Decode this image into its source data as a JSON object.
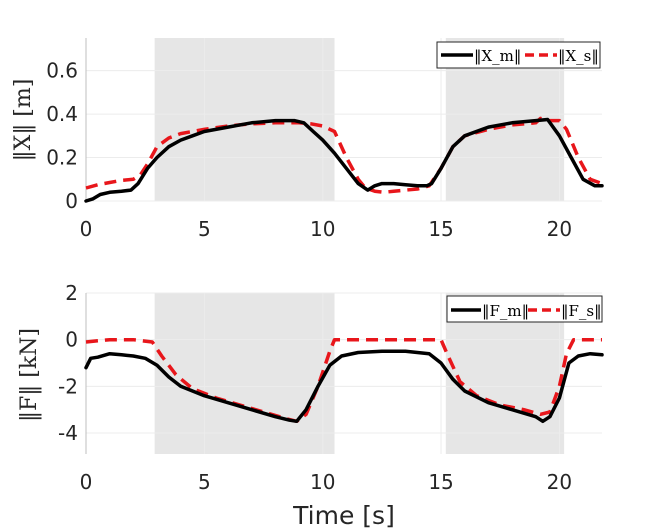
{
  "chart_data": [
    {
      "type": "line",
      "ylabel": "‖X‖ [m]",
      "xlabel": "",
      "xlim": [
        0,
        21.8
      ],
      "ylim": [
        0,
        0.75
      ],
      "xticks": [
        "0",
        "5",
        "10",
        "15",
        "20"
      ],
      "yticks": [
        "0",
        "0.2",
        "0.4",
        "0.6"
      ],
      "grid": true,
      "legend_position": "top-right",
      "shaded_intervals": [
        [
          2.9,
          10.5
        ],
        [
          15.2,
          20.2
        ]
      ],
      "series": [
        {
          "name": "‖X_m‖",
          "color": "#000000",
          "style": "solid",
          "x": [
            0,
            0.3,
            0.6,
            1.0,
            1.5,
            1.9,
            2.2,
            2.6,
            3.0,
            3.5,
            4.0,
            4.5,
            5.0,
            6.0,
            7.0,
            8.0,
            8.8,
            9.2,
            9.6,
            10.0,
            10.5,
            11.0,
            11.5,
            11.9,
            12.2,
            12.5,
            13.0,
            13.5,
            14.0,
            14.4,
            14.6,
            15.0,
            15.5,
            16.0,
            17.0,
            18.0,
            19.0,
            19.5,
            20.0,
            20.5,
            21.0,
            21.5,
            21.8
          ],
          "y": [
            0.0,
            0.01,
            0.03,
            0.04,
            0.045,
            0.05,
            0.08,
            0.15,
            0.2,
            0.25,
            0.28,
            0.3,
            0.32,
            0.34,
            0.36,
            0.37,
            0.37,
            0.36,
            0.32,
            0.28,
            0.22,
            0.15,
            0.08,
            0.05,
            0.07,
            0.08,
            0.08,
            0.075,
            0.07,
            0.07,
            0.08,
            0.15,
            0.25,
            0.3,
            0.34,
            0.36,
            0.37,
            0.375,
            0.3,
            0.2,
            0.1,
            0.07,
            0.07
          ]
        },
        {
          "name": "‖X_s‖",
          "color": "#e8161b",
          "style": "dashed",
          "x": [
            0,
            0.5,
            1.0,
            1.5,
            2.0,
            2.3,
            2.6,
            3.0,
            3.5,
            4.0,
            5.0,
            6.0,
            7.0,
            8.0,
            9.0,
            9.5,
            10.0,
            10.5,
            11.0,
            11.5,
            11.8,
            12.2,
            12.6,
            13.0,
            13.5,
            14.0,
            14.5,
            15.0,
            15.5,
            16.0,
            17.0,
            18.0,
            19.0,
            19.2,
            19.5,
            20.0,
            20.3,
            20.8,
            21.3,
            21.8
          ],
          "y": [
            0.06,
            0.075,
            0.085,
            0.095,
            0.1,
            0.12,
            0.17,
            0.25,
            0.29,
            0.31,
            0.33,
            0.345,
            0.355,
            0.36,
            0.36,
            0.355,
            0.345,
            0.32,
            0.2,
            0.1,
            0.06,
            0.045,
            0.04,
            0.045,
            0.05,
            0.055,
            0.07,
            0.15,
            0.25,
            0.3,
            0.33,
            0.35,
            0.36,
            0.38,
            0.37,
            0.37,
            0.33,
            0.2,
            0.1,
            0.08
          ]
        }
      ]
    },
    {
      "type": "line",
      "ylabel": "‖F‖ [kN]",
      "xlabel": "Time [s]",
      "xlim": [
        0,
        21.8
      ],
      "ylim": [
        -4.9,
        2
      ],
      "xticks": [
        "0",
        "5",
        "10",
        "15",
        "20"
      ],
      "yticks": [
        "-4",
        "-2",
        "0",
        "2"
      ],
      "grid": true,
      "legend_position": "top-right",
      "shaded_intervals": [
        [
          2.9,
          10.5
        ],
        [
          15.2,
          20.2
        ]
      ],
      "series": [
        {
          "name": "‖F_m‖",
          "color": "#000000",
          "style": "solid",
          "x": [
            0,
            0.2,
            0.5,
            1.0,
            1.5,
            2.0,
            2.5,
            3.0,
            3.5,
            4.0,
            5.0,
            6.0,
            7.0,
            8.0,
            8.6,
            8.9,
            9.3,
            9.8,
            10.3,
            10.8,
            11.5,
            12.5,
            13.5,
            14.5,
            15.0,
            15.5,
            16.0,
            17.0,
            18.0,
            19.0,
            19.3,
            19.6,
            20.0,
            20.4,
            20.8,
            21.3,
            21.8
          ],
          "y": [
            -1.2,
            -0.8,
            -0.75,
            -0.6,
            -0.65,
            -0.7,
            -0.8,
            -1.1,
            -1.6,
            -2.0,
            -2.4,
            -2.7,
            -3.0,
            -3.3,
            -3.45,
            -3.5,
            -3.0,
            -2.0,
            -1.1,
            -0.7,
            -0.55,
            -0.5,
            -0.5,
            -0.6,
            -1.0,
            -1.7,
            -2.2,
            -2.7,
            -3.0,
            -3.3,
            -3.5,
            -3.3,
            -2.5,
            -1.0,
            -0.7,
            -0.6,
            -0.65
          ]
        },
        {
          "name": "‖F_s‖",
          "color": "#e8161b",
          "style": "dashed",
          "x": [
            0,
            0.5,
            1.0,
            2.0,
            2.8,
            3.2,
            3.8,
            4.5,
            5.5,
            6.5,
            7.5,
            8.5,
            8.9,
            9.3,
            9.8,
            10.3,
            10.5,
            11.0,
            12.0,
            13.0,
            14.0,
            15.0,
            15.3,
            15.8,
            16.5,
            17.5,
            18.5,
            19.2,
            19.6,
            20.0,
            20.3,
            20.6,
            21.0,
            21.8
          ],
          "y": [
            -0.1,
            -0.05,
            0,
            0,
            -0.1,
            -0.7,
            -1.5,
            -2.1,
            -2.5,
            -2.8,
            -3.1,
            -3.4,
            -3.5,
            -3.2,
            -2.0,
            -0.5,
            0,
            0,
            0,
            0,
            0,
            0,
            -0.7,
            -1.8,
            -2.4,
            -2.8,
            -3.0,
            -3.2,
            -3.1,
            -2.0,
            -0.6,
            0,
            0,
            0
          ]
        }
      ]
    }
  ]
}
